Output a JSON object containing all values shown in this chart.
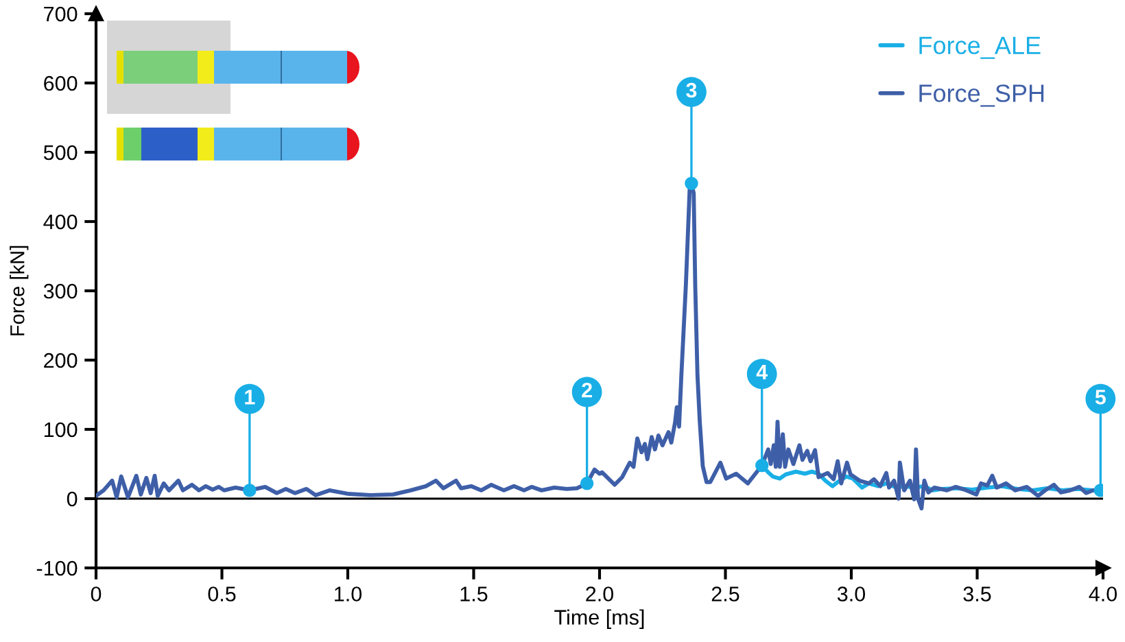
{
  "chart_data": {
    "type": "line",
    "xlabel": "Time [ms]",
    "ylabel": "Force [kN]",
    "xlim": [
      0,
      4
    ],
    "xticks": [
      0,
      0.5,
      {
        "value": 1,
        "label": "1.0"
      },
      1.5,
      {
        "value": 2,
        "label": "2.0"
      },
      2.5,
      {
        "value": 3,
        "label": "3.0"
      },
      3.5,
      {
        "value": 4,
        "label": "4.0"
      }
    ],
    "ylim": [
      -100,
      700
    ],
    "yticks": [
      -100,
      0,
      100,
      200,
      300,
      400,
      500,
      600,
      700
    ],
    "grid": false,
    "legend": "top right",
    "ref_lines": [
      {
        "axis": "y",
        "value": 0,
        "color": "#000000"
      }
    ],
    "series": [
      {
        "name": "Force_ALE",
        "color": "#1aafe6",
        "x": [
          2.645,
          2.67,
          2.688,
          2.716,
          2.74,
          2.78,
          2.816,
          2.843,
          2.87,
          2.897,
          2.925,
          2.95,
          2.98,
          3.006,
          3.043,
          3.07,
          3.106,
          3.14,
          3.179,
          3.215,
          3.25,
          3.288,
          3.324,
          3.36,
          3.42,
          3.48,
          3.54,
          3.6,
          3.66,
          3.72,
          3.78,
          3.84,
          3.9,
          3.96,
          3.99
        ],
        "values": [
          48,
          38,
          32,
          29,
          35,
          39,
          36,
          39,
          36,
          26,
          18,
          25,
          32,
          29,
          16,
          22,
          18,
          22,
          16,
          18,
          16,
          18,
          12,
          14,
          15,
          13,
          16,
          18,
          14,
          12,
          15,
          12,
          14,
          12,
          12
        ]
      },
      {
        "name": "Force_SPH",
        "color": "#3e5fa8",
        "x": [
          0,
          0.03,
          0.064,
          0.082,
          0.1,
          0.127,
          0.16,
          0.178,
          0.2,
          0.217,
          0.233,
          0.245,
          0.269,
          0.29,
          0.327,
          0.345,
          0.381,
          0.409,
          0.436,
          0.463,
          0.487,
          0.509,
          0.554,
          0.61,
          0.672,
          0.718,
          0.754,
          0.79,
          0.836,
          0.872,
          0.927,
          1.0,
          1.09,
          1.18,
          1.25,
          1.31,
          1.35,
          1.38,
          1.43,
          1.45,
          1.49,
          1.53,
          1.57,
          1.62,
          1.66,
          1.7,
          1.73,
          1.77,
          1.82,
          1.87,
          1.91,
          1.95,
          1.98,
          2.0,
          2.01,
          2.06,
          2.09,
          2.12,
          2.135,
          2.15,
          2.167,
          2.18,
          2.19,
          2.207,
          2.22,
          2.234,
          2.25,
          2.274,
          2.285,
          2.3,
          2.307,
          2.316,
          2.325,
          2.343,
          2.358,
          2.365,
          2.374,
          2.38,
          2.389,
          2.398,
          2.41,
          2.425,
          2.44,
          2.48,
          2.503,
          2.543,
          2.589,
          2.645,
          2.67,
          2.68,
          2.692,
          2.7,
          2.707,
          2.716,
          2.728,
          2.737,
          2.75,
          2.77,
          2.794,
          2.806,
          2.825,
          2.838,
          2.856,
          2.87,
          2.906,
          2.93,
          2.946,
          2.96,
          2.983,
          2.997,
          3.033,
          3.07,
          3.09,
          3.115,
          3.139,
          3.15,
          3.17,
          3.188,
          3.193,
          3.21,
          3.233,
          3.25,
          3.257,
          3.265,
          3.279,
          3.29,
          3.306,
          3.33,
          3.38,
          3.415,
          3.45,
          3.497,
          3.515,
          3.54,
          3.56,
          3.578,
          3.615,
          3.651,
          3.697,
          3.742,
          3.77,
          3.805,
          3.833,
          3.87,
          3.906,
          3.933,
          3.96,
          3.99
        ],
        "values": [
          4,
          12,
          26,
          2,
          32,
          2,
          33,
          6,
          30,
          8,
          33,
          4,
          22,
          12,
          26,
          12,
          20,
          12,
          18,
          13,
          17,
          12,
          16,
          12,
          17,
          8,
          14,
          8,
          14,
          5,
          12,
          7,
          5,
          6,
          12,
          18,
          26,
          15,
          26,
          15,
          18,
          12,
          20,
          12,
          18,
          12,
          17,
          12,
          16,
          14,
          15,
          22,
          42,
          36,
          38,
          20,
          31,
          52,
          46,
          87,
          67,
          79,
          57,
          89,
          71,
          91,
          77,
          96,
          81,
          110,
          132,
          104,
          178,
          309,
          447,
          455,
          441,
          309,
          178,
          112,
          47,
          24,
          24,
          52,
          29,
          36,
          22,
          48,
          71,
          50,
          77,
          46,
          111,
          46,
          93,
          46,
          71,
          50,
          77,
          56,
          69,
          54,
          70,
          31,
          37,
          28,
          54,
          22,
          52,
          35,
          26,
          22,
          28,
          18,
          37,
          16,
          26,
          0,
          52,
          12,
          26,
          -1,
          71,
          0,
          -14,
          26,
          9,
          16,
          12,
          17,
          13,
          6,
          22,
          19,
          33,
          16,
          22,
          12,
          17,
          4,
          12,
          20,
          9,
          12,
          17,
          8,
          12,
          12
        ]
      }
    ],
    "annotations": [
      {
        "text": "1",
        "x": 0.61,
        "y": 12
      },
      {
        "text": "2",
        "x": 1.95,
        "y": 22
      },
      {
        "text": "3",
        "x": 2.365,
        "y": 455
      },
      {
        "text": "4",
        "x": 2.645,
        "y": 48
      },
      {
        "text": "5",
        "x": 3.99,
        "y": 12
      }
    ]
  }
}
